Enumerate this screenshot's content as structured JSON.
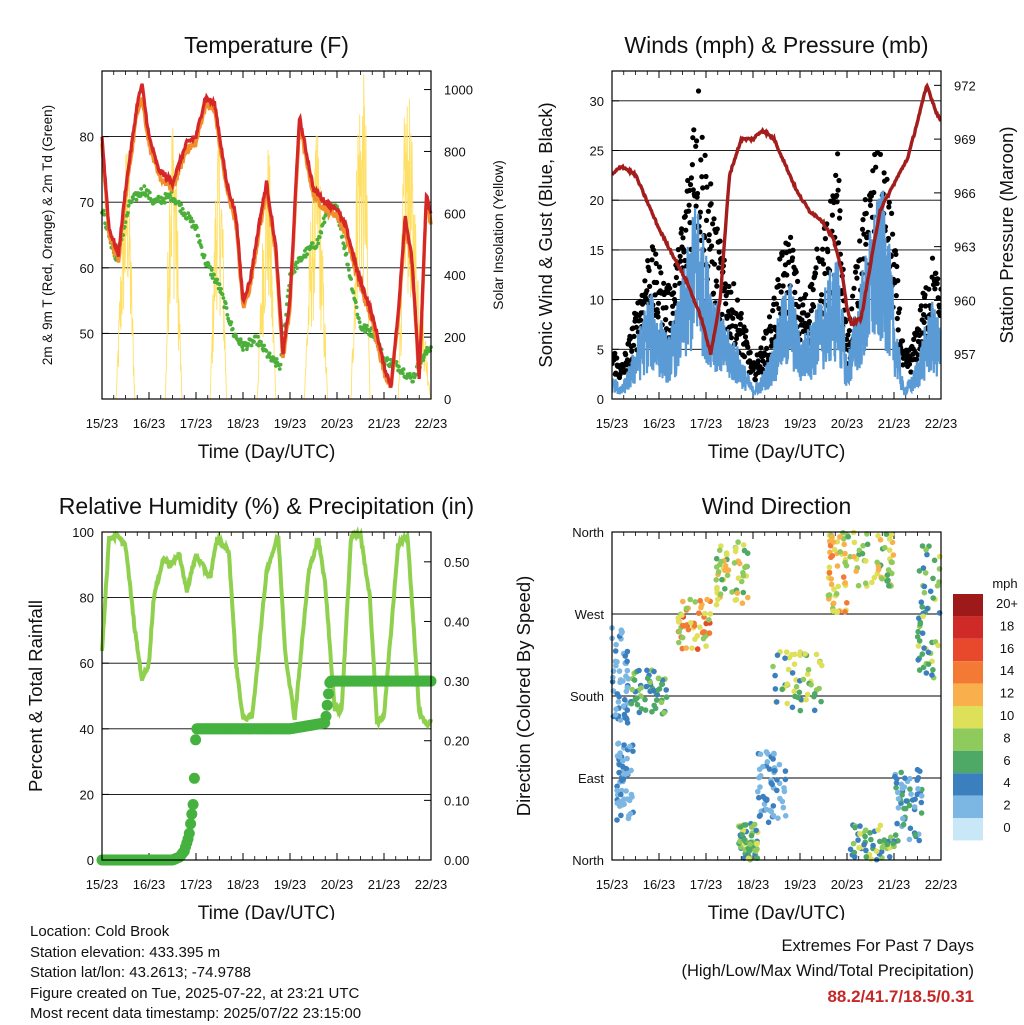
{
  "chart_data": [
    {
      "type": "line",
      "title": "Temperature (F)",
      "xlabel": "Time (Day/UTC)",
      "ylabel": "2m & 9m T (Red, Orange) & 2m Td (Green)",
      "y2label": "Solar Insolation (Yellow)",
      "x_ticks": [
        "15/23",
        "16/23",
        "17/23",
        "18/23",
        "19/23",
        "20/23",
        "21/23",
        "22/23"
      ],
      "xlim": [
        0,
        7
      ],
      "ylim": [
        40,
        90
      ],
      "y_ticks": [
        50,
        60,
        70,
        80
      ],
      "y2lim": [
        0,
        1060
      ],
      "y2_ticks": [
        0,
        200,
        400,
        600,
        800,
        1000
      ],
      "grid": true,
      "series": [
        {
          "name": "2m T",
          "color": "#d62728",
          "axis": "left",
          "x": [
            0,
            0.15,
            0.35,
            0.5,
            0.75,
            0.85,
            1.0,
            1.2,
            1.5,
            1.8,
            2.0,
            2.2,
            2.4,
            2.65,
            2.85,
            3.0,
            3.15,
            3.35,
            3.5,
            3.7,
            3.85,
            4.0,
            4.2,
            4.5,
            4.75,
            5.0,
            5.2,
            5.45,
            5.7,
            5.85,
            6.0,
            6.15,
            6.3,
            6.45,
            6.6,
            6.75,
            6.9,
            7.0
          ],
          "y": [
            80,
            66,
            62,
            72,
            85,
            88,
            80,
            75,
            73,
            79,
            80,
            86,
            85,
            73,
            68,
            55,
            58,
            67,
            73,
            63,
            47,
            55,
            83,
            72,
            70,
            69,
            66,
            59,
            54,
            50,
            45,
            42,
            53,
            68,
            61,
            43,
            71,
            68
          ]
        },
        {
          "name": "9m T",
          "color": "#f28e2b",
          "axis": "left",
          "x": [
            0,
            0.15,
            0.35,
            0.5,
            0.75,
            0.85,
            1.0,
            1.2,
            1.5,
            1.8,
            2.0,
            2.2,
            2.4,
            2.65,
            2.85,
            3.0,
            3.15,
            3.35,
            3.5,
            3.7,
            3.85,
            4.0,
            4.2,
            4.5,
            4.75,
            5.0,
            5.2,
            5.45,
            5.7,
            5.85,
            6.0,
            6.15,
            6.3,
            6.45,
            6.6,
            6.75,
            6.9,
            7.0
          ],
          "y": [
            79,
            65,
            61,
            71,
            84,
            86,
            79,
            74,
            72,
            78,
            79,
            85,
            84,
            72,
            67,
            54,
            57,
            66,
            72,
            62,
            46,
            54,
            82,
            71,
            69,
            68,
            65,
            58,
            53,
            49,
            44,
            42,
            52,
            67,
            60,
            43,
            70,
            67
          ]
        },
        {
          "name": "2m Td",
          "color": "#4caf3a",
          "axis": "left",
          "x": [
            0,
            0.3,
            0.6,
            0.9,
            1.1,
            1.5,
            1.7,
            2.0,
            2.2,
            2.5,
            2.8,
            3.0,
            3.3,
            3.6,
            3.8,
            4.0,
            4.3,
            4.6,
            4.8,
            5.0,
            5.3,
            5.5,
            5.8,
            6.0,
            6.3,
            6.6,
            6.8,
            7.0
          ],
          "y": [
            69,
            61,
            70,
            72,
            70,
            71,
            69,
            66,
            61,
            57,
            50,
            48,
            49,
            46,
            45,
            59,
            62,
            64,
            69,
            69,
            58,
            51,
            50,
            46,
            45,
            43,
            46,
            48
          ]
        },
        {
          "name": "Solar Insolation",
          "color": "#ffe066",
          "axis": "right",
          "x": [
            0,
            0.3,
            0.45,
            0.55,
            0.7,
            1.0,
            1.35,
            1.45,
            1.55,
            1.7,
            1.9,
            2.3,
            2.45,
            2.55,
            2.65,
            2.9,
            3.3,
            3.45,
            3.55,
            3.7,
            4.0,
            4.3,
            4.45,
            4.6,
            4.8,
            5.0,
            5.3,
            5.45,
            5.6,
            5.7,
            6.0,
            6.3,
            6.45,
            6.55,
            6.7,
            7.0
          ],
          "y": [
            0,
            0,
            650,
            850,
            0,
            0,
            0,
            900,
            880,
            0,
            0,
            0,
            850,
            700,
            0,
            0,
            0,
            650,
            800,
            0,
            0,
            0,
            600,
            850,
            0,
            0,
            0,
            950,
            1000,
            0,
            0,
            0,
            950,
            880,
            500,
            0
          ]
        }
      ]
    },
    {
      "type": "line",
      "title": "Winds (mph) & Pressure (mb)",
      "xlabel": "Time (Day/UTC)",
      "ylabel": "Sonic Wind & Gust (Blue, Black)",
      "y2label": "Station Pressure (Maroon)",
      "x_ticks": [
        "15/23",
        "16/23",
        "17/23",
        "18/23",
        "19/23",
        "20/23",
        "21/23",
        "22/23"
      ],
      "xlim": [
        0,
        7
      ],
      "ylim": [
        0,
        33
      ],
      "y_ticks": [
        0,
        5,
        10,
        15,
        20,
        25,
        30
      ],
      "y2lim": [
        954.5,
        972.8
      ],
      "y2_ticks": [
        957,
        960,
        963,
        966,
        969,
        972
      ],
      "grid": true,
      "series": [
        {
          "name": "Sonic Wind",
          "color": "#5b9bd5",
          "axis": "left",
          "x": [
            0,
            0.2,
            0.4,
            0.6,
            0.8,
            1.0,
            1.2,
            1.4,
            1.6,
            1.8,
            2.0,
            2.2,
            2.4,
            2.6,
            2.8,
            3.0,
            3.2,
            3.4,
            3.6,
            3.8,
            4.0,
            4.2,
            4.4,
            4.6,
            4.8,
            5.0,
            5.2,
            5.4,
            5.6,
            5.8,
            6.0,
            6.2,
            6.4,
            6.6,
            6.8,
            7.0
          ],
          "y": [
            2,
            1,
            3,
            6,
            9,
            7,
            5,
            8,
            12,
            17,
            12,
            9,
            6,
            5,
            3,
            1,
            2,
            4,
            8,
            10,
            5,
            6,
            8,
            10,
            12,
            3,
            8,
            12,
            16,
            17,
            8,
            1,
            2,
            5,
            8,
            6
          ]
        },
        {
          "name": "Gust",
          "color": "#000000",
          "axis": "left",
          "x": [
            0,
            0.2,
            0.4,
            0.6,
            0.8,
            1.0,
            1.2,
            1.4,
            1.6,
            1.8,
            2.0,
            2.2,
            2.4,
            2.6,
            2.8,
            3.0,
            3.2,
            3.4,
            3.6,
            3.8,
            4.0,
            4.2,
            4.4,
            4.6,
            4.8,
            5.0,
            5.2,
            5.4,
            5.6,
            5.8,
            6.0,
            6.2,
            6.4,
            6.6,
            6.8,
            7.0
          ],
          "y": [
            5,
            3,
            6,
            10,
            14,
            12,
            10,
            13,
            20,
            30,
            22,
            16,
            12,
            10,
            7,
            3,
            5,
            8,
            13,
            15,
            9,
            10,
            14,
            16,
            22,
            5,
            12,
            18,
            22,
            21,
            15,
            4,
            5,
            9,
            13,
            10
          ]
        },
        {
          "name": "Station Pressure",
          "color": "#a31d1d",
          "axis": "right",
          "x": [
            0,
            0.2,
            0.5,
            0.8,
            1.0,
            1.3,
            1.6,
            1.9,
            2.1,
            2.3,
            2.5,
            2.75,
            3.0,
            3.2,
            3.45,
            3.7,
            3.95,
            4.2,
            4.45,
            4.7,
            4.9,
            5.0,
            5.1,
            5.3,
            5.5,
            5.7,
            5.9,
            6.1,
            6.3,
            6.5,
            6.7,
            6.9,
            7.0
          ],
          "y": [
            967,
            967.5,
            967,
            965.2,
            964,
            962.5,
            961,
            959,
            957,
            960,
            967,
            969,
            969,
            969.5,
            969,
            967.5,
            966,
            965,
            964.5,
            963.5,
            961.5,
            959.5,
            958.7,
            959,
            962,
            965,
            966,
            967,
            968,
            970,
            972,
            970.5,
            970
          ]
        }
      ]
    },
    {
      "type": "line",
      "title": "Relative Humidity (%) & Precipitation (in)",
      "xlabel": "Time (Day/UTC)",
      "ylabel": "Percent & Total Rainfall",
      "x_ticks": [
        "15/23",
        "16/23",
        "17/23",
        "18/23",
        "19/23",
        "20/23",
        "21/23",
        "22/23"
      ],
      "xlim": [
        0,
        7
      ],
      "ylim": [
        0,
        100
      ],
      "y_ticks": [
        0,
        20,
        40,
        60,
        80,
        100
      ],
      "y2lim": [
        0,
        0.55
      ],
      "y2_ticks": [
        "0.00",
        "0.10",
        "0.20",
        "0.30",
        "0.40",
        "0.50"
      ],
      "grid": true,
      "series": [
        {
          "name": "Relative Humidity",
          "color": "#8fd14f",
          "axis": "left",
          "x": [
            0,
            0.15,
            0.3,
            0.5,
            0.7,
            0.85,
            1.0,
            1.1,
            1.3,
            1.45,
            1.65,
            1.8,
            2.0,
            2.3,
            2.45,
            2.7,
            2.85,
            3.0,
            3.2,
            3.5,
            3.75,
            3.9,
            4.1,
            4.4,
            4.6,
            4.75,
            4.95,
            5.1,
            5.3,
            5.5,
            5.7,
            5.85,
            6.0,
            6.3,
            6.5,
            6.75,
            6.9,
            7.0
          ],
          "y": [
            64,
            98,
            99,
            96,
            70,
            55,
            60,
            80,
            92,
            90,
            93,
            82,
            93,
            86,
            98,
            94,
            60,
            43,
            44,
            88,
            99,
            63,
            43,
            88,
            98,
            84,
            46,
            46,
            99,
            99,
            80,
            42,
            44,
            96,
            99,
            45,
            41,
            43
          ]
        },
        {
          "name": "Total Precipitation",
          "color": "#45b23f",
          "axis": "right",
          "x": [
            0,
            0.5,
            1.0,
            1.5,
            1.65,
            1.75,
            1.85,
            1.95,
            2.0,
            3.0,
            4.0,
            4.75,
            4.85,
            5.0,
            6.0,
            7.0
          ],
          "y": [
            0,
            0,
            0,
            0,
            0.005,
            0.015,
            0.04,
            0.1,
            0.22,
            0.22,
            0.22,
            0.23,
            0.3,
            0.3,
            0.3,
            0.3
          ]
        }
      ]
    },
    {
      "type": "scatter",
      "title": "Wind Direction",
      "xlabel": "Time (Day/UTC)",
      "ylabel": "Direction (Colored By Speed)",
      "x_ticks": [
        "15/23",
        "16/23",
        "17/23",
        "18/23",
        "19/23",
        "20/23",
        "21/23",
        "22/23"
      ],
      "xlim": [
        0,
        7
      ],
      "ylim": [
        0,
        360
      ],
      "y_tick_labels": [
        "North",
        "East",
        "South",
        "West",
        "North"
      ],
      "y_ticks": [
        0,
        90,
        180,
        270,
        360
      ],
      "grid": true,
      "colorbar": {
        "title": "mph",
        "labels": [
          "20+",
          "18",
          "16",
          "14",
          "12",
          "10",
          "8",
          "6",
          "4",
          "2",
          "0"
        ],
        "colors": [
          "#9e1a1a",
          "#cf2a27",
          "#e8492c",
          "#f27a35",
          "#f9b04c",
          "#dfe05a",
          "#8fca5c",
          "#4ea866",
          "#3b7fbf",
          "#7cb6e3",
          "#c8e7f7"
        ]
      },
      "clusters": [
        {
          "x": [
            0.0,
            0.35
          ],
          "dir": [
            150,
            260
          ],
          "speed": [
            1,
            4
          ]
        },
        {
          "x": [
            0.1,
            0.45
          ],
          "dir": [
            40,
            130
          ],
          "speed": [
            1,
            4
          ]
        },
        {
          "x": [
            0.4,
            1.2
          ],
          "dir": [
            160,
            210
          ],
          "speed": [
            3,
            8
          ]
        },
        {
          "x": [
            1.4,
            2.1
          ],
          "dir": [
            230,
            290
          ],
          "speed": [
            8,
            16
          ]
        },
        {
          "x": [
            2.2,
            2.9
          ],
          "dir": [
            280,
            350
          ],
          "speed": [
            6,
            12
          ]
        },
        {
          "x": [
            2.7,
            3.1
          ],
          "dir": [
            0,
            40
          ],
          "speed": [
            4,
            10
          ]
        },
        {
          "x": [
            3.1,
            3.7
          ],
          "dir": [
            40,
            120
          ],
          "speed": [
            1,
            5
          ]
        },
        {
          "x": [
            3.4,
            4.5
          ],
          "dir": [
            160,
            230
          ],
          "speed": [
            3,
            11
          ]
        },
        {
          "x": [
            4.6,
            5.0
          ],
          "dir": [
            270,
            360
          ],
          "speed": [
            8,
            14
          ]
        },
        {
          "x": [
            5.0,
            6.0
          ],
          "dir": [
            300,
            360
          ],
          "speed": [
            6,
            12
          ]
        },
        {
          "x": [
            5.0,
            6.1
          ],
          "dir": [
            0,
            40
          ],
          "speed": [
            3,
            10
          ]
        },
        {
          "x": [
            6.0,
            6.6
          ],
          "dir": [
            20,
            100
          ],
          "speed": [
            2,
            6
          ]
        },
        {
          "x": [
            6.5,
            7.0
          ],
          "dir": [
            200,
            360
          ],
          "speed": [
            3,
            10
          ]
        }
      ]
    }
  ],
  "info": {
    "location": "Location: Cold Brook",
    "elevation": "Station elevation: 433.395 m",
    "latlon": "Station lat/lon: 43.2613; -74.9788",
    "created": "Figure created on Tue, 2025-07-22, at 23:21 UTC",
    "recent": "Most recent data timestamp: 2025/07/22 23:15:00"
  },
  "extremes": {
    "title": "Extremes For Past 7 Days",
    "subtitle": "(High/Low/Max Wind/Total Precipitation)",
    "values": "88.2/41.7/18.5/0.31"
  }
}
